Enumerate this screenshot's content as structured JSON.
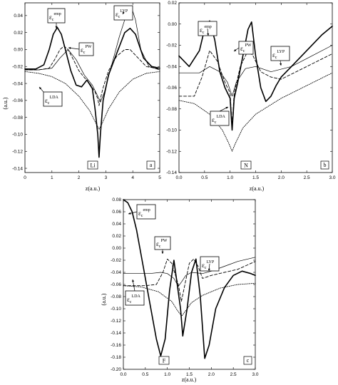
{
  "chart_data": [
    {
      "type": "line",
      "panel_label": "a",
      "atom_label": "Li",
      "xlabel": "z(a.u.)",
      "ylabel": "(a.u.)",
      "xlim": [
        0,
        5
      ],
      "ylim": [
        -0.145,
        0.055
      ],
      "xticks": [
        0,
        1,
        2,
        3,
        4,
        5
      ],
      "xticklabels": [
        "0",
        "1",
        "2",
        "3",
        "4",
        "5"
      ],
      "yticks": [
        0.04,
        0.02,
        0.0,
        -0.02,
        -0.04,
        -0.06,
        -0.08,
        -0.1,
        -0.12,
        -0.14
      ],
      "yticklabels": [
        "0.04",
        "0.02",
        "0.00",
        "-0.02",
        "-0.04",
        "-0.06",
        "-0.08",
        "-0.10",
        "-0.12",
        "-0.14"
      ],
      "series": [
        {
          "name": "εc emp",
          "style": "solid-thick",
          "x": [
            0,
            0.4,
            0.7,
            0.9,
            1.05,
            1.2,
            1.35,
            1.5,
            1.7,
            1.9,
            2.1,
            2.3,
            2.5,
            2.6,
            2.7,
            2.75,
            2.8,
            2.9,
            3.1,
            3.4,
            3.7,
            3.9,
            4.1,
            4.4,
            4.7,
            5
          ],
          "y": [
            -0.023,
            -0.023,
            -0.018,
            0.0,
            0.018,
            0.026,
            0.018,
            0.0,
            -0.025,
            -0.042,
            -0.044,
            -0.036,
            -0.046,
            -0.07,
            -0.1,
            -0.127,
            -0.1,
            -0.06,
            -0.03,
            -0.005,
            0.02,
            0.025,
            0.018,
            -0.01,
            -0.02,
            -0.022
          ]
        },
        {
          "name": "εc PW",
          "style": "dashed",
          "x": [
            0,
            0.5,
            0.9,
            1.1,
            1.3,
            1.45,
            1.6,
            1.8,
            2.0,
            2.2,
            2.4,
            2.6,
            2.7,
            2.75,
            2.8,
            2.9,
            3.1,
            3.4,
            3.7,
            3.9,
            4.2,
            4.5,
            5
          ],
          "y": [
            -0.024,
            -0.024,
            -0.022,
            -0.012,
            0.0,
            0.004,
            0.0,
            -0.012,
            -0.025,
            -0.033,
            -0.04,
            -0.05,
            -0.058,
            -0.066,
            -0.058,
            -0.045,
            -0.025,
            -0.008,
            0.0,
            0.0,
            -0.01,
            -0.02,
            -0.023
          ]
        },
        {
          "name": "εc LYP",
          "style": "solid-thin",
          "x": [
            0,
            0.5,
            1.0,
            1.3,
            1.6,
            1.9,
            2.2,
            2.5,
            2.7,
            2.8,
            2.95,
            3.2,
            3.5,
            3.75,
            3.95,
            4.1,
            4.3,
            4.6,
            5
          ],
          "y": [
            -0.024,
            -0.024,
            -0.022,
            -0.01,
            0.0,
            -0.012,
            -0.03,
            -0.042,
            -0.055,
            -0.062,
            -0.05,
            -0.02,
            0.015,
            0.04,
            0.05,
            0.035,
            0.0,
            -0.02,
            -0.024
          ]
        },
        {
          "name": "εc LDA",
          "style": "dotted",
          "x": [
            0,
            0.5,
            1.0,
            1.5,
            2.0,
            2.4,
            2.65,
            2.75,
            2.85,
            3.1,
            3.5,
            4.0,
            4.5,
            5
          ],
          "y": [
            -0.026,
            -0.028,
            -0.032,
            -0.04,
            -0.055,
            -0.072,
            -0.088,
            -0.094,
            -0.088,
            -0.07,
            -0.05,
            -0.035,
            -0.028,
            -0.026
          ]
        }
      ]
    },
    {
      "type": "line",
      "panel_label": "b",
      "atom_label": "N",
      "xlabel": "z(a.u.)",
      "ylabel": "",
      "xlim": [
        0,
        3.0
      ],
      "ylim": [
        -0.14,
        0.02
      ],
      "xticks": [
        0,
        0.5,
        1.0,
        1.5,
        2.0,
        2.5,
        3.0
      ],
      "xticklabels": [
        "0.0",
        "0.5",
        "1.0",
        "1.5",
        "2.0",
        "2.5",
        "3.0"
      ],
      "yticks": [
        0.02,
        0.0,
        -0.02,
        -0.04,
        -0.06,
        -0.08,
        -0.1,
        -0.12,
        -0.14
      ],
      "yticklabels": [
        "0.02",
        "0.00",
        "-0.02",
        "-0.04",
        "-0.06",
        "-0.08",
        "-0.10",
        "-0.12",
        "-0.14"
      ],
      "series": [
        {
          "name": "εc emp",
          "style": "solid-thick",
          "x": [
            0,
            0.2,
            0.4,
            0.5,
            0.6,
            0.7,
            0.8,
            0.9,
            1.0,
            1.04,
            1.08,
            1.15,
            1.25,
            1.35,
            1.42,
            1.5,
            1.6,
            1.7,
            1.8,
            1.9,
            2.0,
            2.2,
            2.5,
            2.8,
            3.0
          ],
          "y": [
            -0.03,
            -0.04,
            -0.025,
            -0.005,
            0.003,
            -0.015,
            -0.045,
            -0.06,
            -0.07,
            -0.1,
            -0.07,
            -0.055,
            -0.03,
            -0.005,
            0.002,
            -0.03,
            -0.06,
            -0.073,
            -0.068,
            -0.058,
            -0.05,
            -0.04,
            -0.025,
            -0.01,
            -0.002
          ]
        },
        {
          "name": "εc PW",
          "style": "dashed",
          "x": [
            0,
            0.3,
            0.45,
            0.6,
            0.75,
            0.9,
            1.0,
            1.04,
            1.08,
            1.2,
            1.35,
            1.45,
            1.6,
            1.8,
            2.0,
            2.5,
            3.0
          ],
          "y": [
            -0.068,
            -0.068,
            -0.05,
            -0.025,
            -0.035,
            -0.055,
            -0.065,
            -0.095,
            -0.065,
            -0.04,
            -0.025,
            -0.03,
            -0.045,
            -0.05,
            -0.052,
            -0.04,
            -0.028
          ]
        },
        {
          "name": "εc LYP",
          "style": "solid-thin",
          "x": [
            0,
            0.4,
            0.6,
            0.8,
            0.95,
            1.04,
            1.12,
            1.3,
            1.5,
            1.8,
            2.2,
            2.6,
            3.0
          ],
          "y": [
            -0.046,
            -0.046,
            -0.04,
            -0.045,
            -0.055,
            -0.068,
            -0.055,
            -0.042,
            -0.04,
            -0.045,
            -0.04,
            -0.03,
            -0.02
          ]
        },
        {
          "name": "εc LDA",
          "style": "dotted",
          "x": [
            0,
            0.3,
            0.6,
            0.85,
            0.98,
            1.04,
            1.1,
            1.25,
            1.5,
            2.0,
            2.5,
            3.0
          ],
          "y": [
            -0.072,
            -0.075,
            -0.085,
            -0.1,
            -0.113,
            -0.12,
            -0.113,
            -0.098,
            -0.085,
            -0.07,
            -0.058,
            -0.046
          ]
        }
      ]
    },
    {
      "type": "line",
      "panel_label": "c",
      "atom_label": "F",
      "xlabel": "z(a.u.)",
      "ylabel": "(a.u.)",
      "xlim": [
        0,
        3.0
      ],
      "ylim": [
        -0.2,
        0.08
      ],
      "xticks": [
        0,
        0.5,
        1.0,
        1.5,
        2.0,
        2.5,
        3.0
      ],
      "xticklabels": [
        "0.0",
        "0.5",
        "1.0",
        "1.5",
        "2.0",
        "2.5",
        "3.0"
      ],
      "yticks": [
        0.08,
        0.06,
        0.04,
        0.02,
        0.0,
        -0.02,
        -0.04,
        -0.06,
        -0.08,
        -0.1,
        -0.12,
        -0.14,
        -0.16,
        -0.18,
        -0.2
      ],
      "yticklabels": [
        "0.08",
        "0.06",
        "0.04",
        "0.02",
        "0.00",
        "-0.02",
        "-0.04",
        "-0.06",
        "-0.08",
        "-0.10",
        "-0.12",
        "-0.14",
        "-0.16",
        "-0.18",
        "-0.20"
      ],
      "series": [
        {
          "name": "εc emp",
          "style": "solid-thick",
          "x": [
            0,
            0.1,
            0.2,
            0.3,
            0.45,
            0.6,
            0.75,
            0.85,
            0.95,
            1.05,
            1.15,
            1.3,
            1.35,
            1.45,
            1.55,
            1.65,
            1.75,
            1.85,
            1.95,
            2.1,
            2.3,
            2.5,
            2.7,
            2.9,
            3.0
          ],
          "y": [
            0.08,
            0.075,
            0.06,
            0.03,
            -0.03,
            -0.09,
            -0.15,
            -0.178,
            -0.15,
            -0.07,
            -0.02,
            -0.1,
            -0.145,
            -0.1,
            -0.04,
            -0.018,
            -0.08,
            -0.182,
            -0.16,
            -0.1,
            -0.065,
            -0.045,
            -0.038,
            -0.042,
            -0.045
          ]
        },
        {
          "name": "εc PW",
          "style": "dashed",
          "x": [
            0,
            0.5,
            0.75,
            0.9,
            1.0,
            1.1,
            1.25,
            1.32,
            1.4,
            1.5,
            1.6,
            1.7,
            1.8,
            2.0,
            2.3,
            2.6,
            3.0
          ],
          "y": [
            -0.062,
            -0.062,
            -0.06,
            -0.04,
            -0.018,
            -0.025,
            -0.06,
            -0.088,
            -0.06,
            -0.025,
            -0.018,
            -0.03,
            -0.05,
            -0.045,
            -0.04,
            -0.035,
            -0.022
          ]
        },
        {
          "name": "εc LYP",
          "style": "solid-thin",
          "x": [
            0,
            0.6,
            0.85,
            1.0,
            1.15,
            1.25,
            1.33,
            1.42,
            1.55,
            1.8,
            2.0,
            2.3,
            2.6,
            3.0
          ],
          "y": [
            -0.042,
            -0.042,
            -0.04,
            -0.042,
            -0.05,
            -0.063,
            -0.055,
            -0.045,
            -0.04,
            -0.042,
            -0.038,
            -0.03,
            -0.022,
            -0.015
          ]
        },
        {
          "name": "εc LDA",
          "style": "dotted",
          "x": [
            0,
            0.4,
            0.8,
            1.1,
            1.25,
            1.33,
            1.4,
            1.55,
            1.8,
            2.2,
            2.6,
            3.0
          ],
          "y": [
            -0.062,
            -0.064,
            -0.072,
            -0.088,
            -0.105,
            -0.112,
            -0.105,
            -0.09,
            -0.078,
            -0.066,
            -0.06,
            -0.058
          ]
        }
      ]
    }
  ],
  "annotations": {
    "a": [
      {
        "sym": "ε",
        "sub": "c",
        "sup": "emp"
      },
      {
        "sym": "ε",
        "sub": "c",
        "sup": "PW"
      },
      {
        "sym": "ε",
        "sub": "c",
        "sup": "LYP"
      },
      {
        "sym": "ε",
        "sub": "c",
        "sup": "LDA"
      }
    ],
    "b": [
      {
        "sym": "ε",
        "sub": "c",
        "sup": "emp"
      },
      {
        "sym": "ε",
        "sub": "c",
        "sup": "PW"
      },
      {
        "sym": "ε",
        "sub": "c",
        "sup": "LYP"
      },
      {
        "sym": "ε",
        "sub": "c",
        "sup": "LDA"
      }
    ],
    "c": [
      {
        "sym": "ε",
        "sub": "c",
        "sup": "emp"
      },
      {
        "sym": "ε",
        "sub": "c",
        "sup": "PW"
      },
      {
        "sym": "ε",
        "sub": "c",
        "sup": "LYP"
      },
      {
        "sym": "ε",
        "sub": "c",
        "sup": "LDA"
      }
    ]
  }
}
